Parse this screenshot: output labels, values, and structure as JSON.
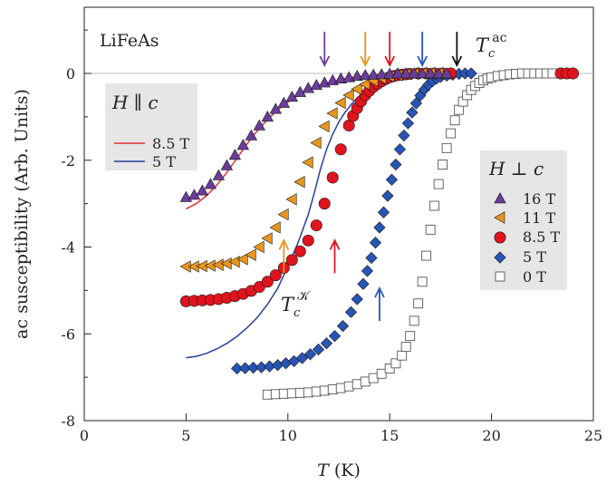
{
  "chart_data": {
    "type": "scatter",
    "sample_label": "LiFeAs",
    "xlabel_var": "T",
    "xlabel_unit": " (K)",
    "ylabel": "ac susceptibility (Arb. Units)",
    "xlim": [
      0,
      25
    ],
    "ylim": [
      -8,
      1.5
    ],
    "xticks": [
      0,
      5,
      10,
      15,
      20,
      25
    ],
    "yticks": [
      -8,
      -6,
      -4,
      -2,
      0
    ],
    "tc_ac_label": "T",
    "tc_ac_sub": "c",
    "tc_ac_sup": "ac",
    "tc_k_label": "T",
    "tc_k_sub": "c",
    "tc_k_sup": "𝒦",
    "legend_par": {
      "title_var": "H",
      "title_rel": " ∥ ",
      "title_axis": "c",
      "entries": [
        "8.5 T",
        "5 T"
      ]
    },
    "legend_perp": {
      "title_var": "H",
      "title_rel": " ⊥ ",
      "title_axis": "c",
      "entries": [
        "16 T",
        "11 T",
        "8.5 T",
        "5 T",
        "0 T"
      ]
    },
    "series": [
      {
        "name": "16 T",
        "marker": "triangle-up",
        "color": "#6a3d9a",
        "x": [
          5.0,
          5.4,
          5.8,
          6.2,
          6.6,
          7.0,
          7.4,
          7.8,
          8.2,
          8.6,
          9.0,
          9.4,
          9.8,
          10.2,
          10.6,
          11.0,
          11.4,
          11.8,
          12.2,
          12.6,
          13.0,
          13.4,
          13.8,
          14.2,
          14.6,
          15.0,
          15.4,
          15.8,
          16.2,
          16.6,
          17.0,
          17.4,
          17.8
        ],
        "y": [
          -2.85,
          -2.8,
          -2.7,
          -2.55,
          -2.35,
          -2.12,
          -1.88,
          -1.65,
          -1.43,
          -1.2,
          -1.0,
          -0.82,
          -0.68,
          -0.54,
          -0.43,
          -0.34,
          -0.27,
          -0.21,
          -0.16,
          -0.12,
          -0.09,
          -0.06,
          -0.04,
          -0.03,
          -0.02,
          -0.01,
          0.0,
          0.0,
          0.0,
          0.0,
          0.0,
          0.0,
          0.0
        ]
      },
      {
        "name": "11 T",
        "marker": "triangle-left",
        "color": "#e8961e",
        "x": [
          5.0,
          5.4,
          5.8,
          6.2,
          6.6,
          7.0,
          7.4,
          7.8,
          8.2,
          8.6,
          9.0,
          9.4,
          9.8,
          10.2,
          10.6,
          11.0,
          11.4,
          11.8,
          12.2,
          12.6,
          13.0,
          13.4,
          13.8,
          14.2,
          14.6,
          15.0,
          15.4,
          15.8,
          16.2,
          16.6,
          17.0,
          17.4
        ],
        "y": [
          -4.45,
          -4.45,
          -4.44,
          -4.43,
          -4.41,
          -4.38,
          -4.34,
          -4.28,
          -4.18,
          -4.0,
          -3.8,
          -3.55,
          -3.25,
          -2.9,
          -2.5,
          -2.05,
          -1.6,
          -1.22,
          -0.92,
          -0.68,
          -0.5,
          -0.36,
          -0.25,
          -0.17,
          -0.11,
          -0.07,
          -0.04,
          -0.02,
          -0.01,
          0.0,
          0.0,
          0.0
        ]
      },
      {
        "name": "8.5 T",
        "marker": "circle",
        "color": "#e0141e",
        "x": [
          5.0,
          5.4,
          5.8,
          6.2,
          6.6,
          7.0,
          7.4,
          7.8,
          8.2,
          8.6,
          9.0,
          9.4,
          9.8,
          10.2,
          10.6,
          11.0,
          11.4,
          11.8,
          12.2,
          12.6,
          13.0,
          13.2,
          13.4,
          13.6,
          13.8,
          14.0,
          14.2,
          14.4,
          14.6,
          14.8,
          15.0,
          15.2,
          15.4,
          15.6,
          15.8,
          16.0,
          16.4,
          16.8,
          17.2,
          17.6,
          18.0,
          23.4,
          23.7,
          24.0
        ],
        "y": [
          -5.25,
          -5.24,
          -5.23,
          -5.22,
          -5.2,
          -5.17,
          -5.13,
          -5.08,
          -5.01,
          -4.92,
          -4.8,
          -4.65,
          -4.48,
          -4.3,
          -4.1,
          -3.85,
          -3.5,
          -3.0,
          -2.4,
          -1.75,
          -1.2,
          -0.98,
          -0.8,
          -0.64,
          -0.5,
          -0.4,
          -0.31,
          -0.24,
          -0.18,
          -0.13,
          -0.09,
          -0.06,
          -0.04,
          -0.03,
          -0.02,
          -0.01,
          0.0,
          0.0,
          0.0,
          0.0,
          0.0,
          0.0,
          0.0,
          0.0
        ]
      },
      {
        "name": "5 T",
        "marker": "diamond",
        "color": "#2855b5",
        "x": [
          7.5,
          7.9,
          8.3,
          8.7,
          9.1,
          9.5,
          9.9,
          10.3,
          10.7,
          11.1,
          11.5,
          11.9,
          12.3,
          12.7,
          13.1,
          13.4,
          13.7,
          13.9,
          14.1,
          14.3,
          14.5,
          14.7,
          14.9,
          15.1,
          15.3,
          15.5,
          15.7,
          15.9,
          16.1,
          16.3,
          16.5,
          16.7,
          16.9,
          17.1,
          17.3,
          17.5,
          17.8,
          18.1,
          18.4,
          18.7,
          19.0
        ],
        "y": [
          -6.8,
          -6.79,
          -6.78,
          -6.77,
          -6.75,
          -6.72,
          -6.68,
          -6.63,
          -6.56,
          -6.47,
          -6.36,
          -6.22,
          -6.05,
          -5.82,
          -5.5,
          -5.2,
          -4.85,
          -4.55,
          -4.25,
          -3.9,
          -3.55,
          -3.2,
          -2.82,
          -2.45,
          -2.1,
          -1.75,
          -1.43,
          -1.15,
          -0.9,
          -0.69,
          -0.51,
          -0.37,
          -0.26,
          -0.18,
          -0.12,
          -0.08,
          -0.05,
          -0.03,
          -0.01,
          0.0,
          0.0
        ]
      },
      {
        "name": "0 T",
        "marker": "square-open",
        "color": "#555555",
        "x": [
          9.0,
          9.4,
          9.8,
          10.2,
          10.6,
          11.0,
          11.4,
          11.8,
          12.2,
          12.6,
          13.0,
          13.4,
          13.8,
          14.2,
          14.6,
          15.0,
          15.3,
          15.6,
          15.8,
          16.0,
          16.2,
          16.4,
          16.6,
          16.8,
          17.0,
          17.2,
          17.4,
          17.6,
          17.8,
          18.0,
          18.2,
          18.4,
          18.6,
          18.8,
          19.0,
          19.2,
          19.4,
          19.6,
          19.8,
          20.0,
          20.3,
          20.6,
          20.9,
          21.2,
          21.5,
          21.8,
          22.1,
          22.4,
          22.7,
          23.0
        ],
        "y": [
          -7.4,
          -7.39,
          -7.38,
          -7.37,
          -7.36,
          -7.35,
          -7.33,
          -7.31,
          -7.28,
          -7.25,
          -7.21,
          -7.16,
          -7.1,
          -7.02,
          -6.92,
          -6.8,
          -6.68,
          -6.5,
          -6.3,
          -6.05,
          -5.7,
          -5.3,
          -4.8,
          -4.2,
          -3.6,
          -3.05,
          -2.55,
          -2.1,
          -1.72,
          -1.38,
          -1.08,
          -0.84,
          -0.65,
          -0.5,
          -0.38,
          -0.29,
          -0.22,
          -0.16,
          -0.12,
          -0.09,
          -0.06,
          -0.04,
          -0.02,
          -0.01,
          0.0,
          0.0,
          0.0,
          0.0,
          0.0,
          0.0
        ]
      }
    ],
    "lines": [
      {
        "name": "8.5 T",
        "color": "#e03030",
        "x": [
          5.0,
          5.5,
          6.0,
          6.5,
          7.0,
          7.5,
          8.0,
          8.5,
          9.0,
          9.5,
          10.0,
          10.5,
          11.0,
          11.5,
          12.0,
          12.5,
          13.0,
          13.5,
          14.0,
          14.5,
          15.0,
          15.5,
          16.0,
          16.5,
          17.0,
          17.5
        ],
        "y": [
          -3.12,
          -3.0,
          -2.82,
          -2.58,
          -2.28,
          -1.95,
          -1.62,
          -1.32,
          -1.06,
          -0.84,
          -0.66,
          -0.51,
          -0.39,
          -0.29,
          -0.21,
          -0.15,
          -0.1,
          -0.07,
          -0.05,
          -0.03,
          -0.02,
          -0.01,
          0.0,
          0.0,
          0.0,
          0.0
        ]
      },
      {
        "name": "5 T",
        "color": "#2a3f9a",
        "x": [
          5.0,
          5.5,
          6.0,
          6.5,
          7.0,
          7.5,
          8.0,
          8.5,
          9.0,
          9.5,
          10.0,
          10.5,
          11.0,
          11.3,
          11.6,
          11.9,
          12.2,
          12.5,
          12.8,
          13.1,
          13.4,
          13.7,
          14.0,
          14.3,
          14.6,
          14.9,
          15.2,
          15.6,
          16.0,
          16.5,
          17.0
        ],
        "y": [
          -6.55,
          -6.52,
          -6.45,
          -6.35,
          -6.22,
          -6.06,
          -5.86,
          -5.62,
          -5.32,
          -4.95,
          -4.45,
          -3.9,
          -3.25,
          -2.75,
          -2.2,
          -1.75,
          -1.4,
          -1.12,
          -0.9,
          -0.72,
          -0.57,
          -0.45,
          -0.35,
          -0.27,
          -0.2,
          -0.15,
          -0.11,
          -0.07,
          -0.04,
          -0.02,
          0.0
        ]
      }
    ],
    "tc_ac_arrows": [
      {
        "x": 11.8,
        "color": "#6a3d9a"
      },
      {
        "x": 13.8,
        "color": "#e8961e"
      },
      {
        "x": 15.0,
        "color": "#e0141e"
      },
      {
        "x": 16.6,
        "color": "#2855b5"
      },
      {
        "x": 18.3,
        "color": "#111111"
      }
    ],
    "tc_k_arrows": [
      {
        "x": 9.8,
        "y_tip": -3.85,
        "color": "#e8961e"
      },
      {
        "x": 12.3,
        "y_tip": -3.85,
        "color": "#e0141e"
      },
      {
        "x": 14.5,
        "y_tip": -4.95,
        "color": "#2855b5"
      }
    ]
  }
}
